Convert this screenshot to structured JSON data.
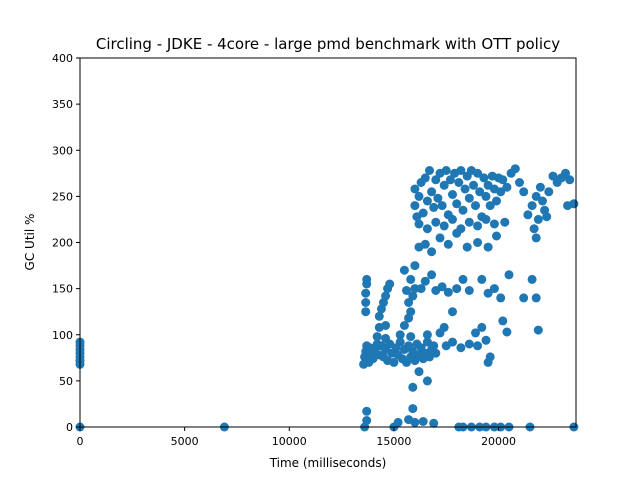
{
  "chart_data": {
    "type": "scatter",
    "title": "Circling - JDKE - 4core -  large pmd benchmark with OTT policy",
    "xlabel": "Time (milliseconds)",
    "ylabel": "GC Util %",
    "xlim": [
      0,
      23700
    ],
    "ylim": [
      0,
      400
    ],
    "xticks": [
      0,
      5000,
      10000,
      15000,
      20000
    ],
    "yticks": [
      0,
      50,
      100,
      150,
      200,
      250,
      300,
      350,
      400
    ],
    "grid": false,
    "legend": "none",
    "marker_color": "#1f77b4",
    "series": [
      {
        "points": [
          [
            0,
            0
          ],
          [
            0,
            68
          ],
          [
            0,
            72
          ],
          [
            0,
            76
          ],
          [
            0,
            80
          ],
          [
            0,
            84
          ],
          [
            0,
            88
          ],
          [
            0,
            92
          ],
          [
            6900,
            0
          ],
          [
            13600,
            0
          ],
          [
            13700,
            7
          ],
          [
            13700,
            17
          ],
          [
            15000,
            0
          ],
          [
            15200,
            5
          ],
          [
            15900,
            20
          ],
          [
            15700,
            8
          ],
          [
            16000,
            5
          ],
          [
            16400,
            6
          ],
          [
            16900,
            4
          ],
          [
            18100,
            0
          ],
          [
            18300,
            0
          ],
          [
            18700,
            0
          ],
          [
            19100,
            0
          ],
          [
            19400,
            0
          ],
          [
            19800,
            0
          ],
          [
            20100,
            0
          ],
          [
            20500,
            0
          ],
          [
            21500,
            0
          ],
          [
            23600,
            0
          ],
          [
            13550,
            68
          ],
          [
            13600,
            76
          ],
          [
            13650,
            82
          ],
          [
            13700,
            88
          ],
          [
            13750,
            78
          ],
          [
            13800,
            70
          ],
          [
            13850,
            86
          ],
          [
            13900,
            80
          ],
          [
            14000,
            74
          ],
          [
            14100,
            84
          ],
          [
            14200,
            90
          ],
          [
            14300,
            78
          ],
          [
            14400,
            88
          ],
          [
            14500,
            76
          ],
          [
            14600,
            84
          ],
          [
            14700,
            72
          ],
          [
            14800,
            90
          ],
          [
            14900,
            80
          ],
          [
            15000,
            70
          ],
          [
            15100,
            86
          ],
          [
            15200,
            78
          ],
          [
            15300,
            92
          ],
          [
            15400,
            74
          ],
          [
            15500,
            84
          ],
          [
            15600,
            70
          ],
          [
            15700,
            88
          ],
          [
            15800,
            76
          ],
          [
            15900,
            82
          ],
          [
            16000,
            72
          ],
          [
            16100,
            90
          ],
          [
            16200,
            78
          ],
          [
            16300,
            86
          ],
          [
            16400,
            74
          ],
          [
            16500,
            80
          ],
          [
            16600,
            92
          ],
          [
            16700,
            76
          ],
          [
            16800,
            84
          ],
          [
            16900,
            88
          ],
          [
            17000,
            80
          ],
          [
            14200,
            98
          ],
          [
            14600,
            96
          ],
          [
            15300,
            100
          ],
          [
            15800,
            98
          ],
          [
            16600,
            100
          ],
          [
            17200,
            102
          ],
          [
            17500,
            88
          ],
          [
            17800,
            92
          ],
          [
            18200,
            86
          ],
          [
            18600,
            90
          ],
          [
            19000,
            88
          ],
          [
            19400,
            94
          ],
          [
            19600,
            76
          ],
          [
            19500,
            70
          ],
          [
            15900,
            43
          ],
          [
            16600,
            50
          ],
          [
            16200,
            60
          ],
          [
            13650,
            125
          ],
          [
            13650,
            135
          ],
          [
            13650,
            145
          ],
          [
            13700,
            155
          ],
          [
            13700,
            160
          ],
          [
            14300,
            120
          ],
          [
            14400,
            128
          ],
          [
            14500,
            135
          ],
          [
            14600,
            142
          ],
          [
            14700,
            150
          ],
          [
            14800,
            155
          ],
          [
            14300,
            108
          ],
          [
            14600,
            110
          ],
          [
            15500,
            110
          ],
          [
            15700,
            118
          ],
          [
            15800,
            125
          ],
          [
            15700,
            135
          ],
          [
            15900,
            142
          ],
          [
            16000,
            150
          ],
          [
            15600,
            148
          ],
          [
            15800,
            160
          ],
          [
            15500,
            170
          ],
          [
            16000,
            175
          ],
          [
            16300,
            150
          ],
          [
            16500,
            158
          ],
          [
            16800,
            165
          ],
          [
            17000,
            148
          ],
          [
            17300,
            152
          ],
          [
            17600,
            146
          ],
          [
            18000,
            150
          ],
          [
            18300,
            160
          ],
          [
            18600,
            148
          ],
          [
            19200,
            160
          ],
          [
            19500,
            145
          ],
          [
            19800,
            150
          ],
          [
            20100,
            140
          ],
          [
            20500,
            165
          ],
          [
            21200,
            140
          ],
          [
            21600,
            160
          ],
          [
            21800,
            140
          ],
          [
            16200,
            195
          ],
          [
            16500,
            198
          ],
          [
            16800,
            190
          ],
          [
            17200,
            205
          ],
          [
            17600,
            198
          ],
          [
            18000,
            210
          ],
          [
            18500,
            195
          ],
          [
            19000,
            200
          ],
          [
            19500,
            195
          ],
          [
            19900,
            207
          ],
          [
            21700,
            215
          ],
          [
            21800,
            205
          ],
          [
            17800,
            125
          ],
          [
            17400,
            108
          ],
          [
            18900,
            102
          ],
          [
            19200,
            108
          ],
          [
            20200,
            115
          ],
          [
            20400,
            103
          ],
          [
            21900,
            105
          ],
          [
            16000,
            258
          ],
          [
            16000,
            240
          ],
          [
            16100,
            228
          ],
          [
            16200,
            250
          ],
          [
            16300,
            265
          ],
          [
            16400,
            232
          ],
          [
            16500,
            270
          ],
          [
            16600,
            245
          ],
          [
            16700,
            278
          ],
          [
            16800,
            255
          ],
          [
            16900,
            238
          ],
          [
            17000,
            268
          ],
          [
            17100,
            248
          ],
          [
            17200,
            275
          ],
          [
            17300,
            240
          ],
          [
            17400,
            262
          ],
          [
            17500,
            278
          ],
          [
            17600,
            230
          ],
          [
            17700,
            268
          ],
          [
            17800,
            252
          ],
          [
            17900,
            275
          ],
          [
            18000,
            242
          ],
          [
            18100,
            265
          ],
          [
            18200,
            278
          ],
          [
            18300,
            235
          ],
          [
            18400,
            258
          ],
          [
            18500,
            272
          ],
          [
            18600,
            248
          ],
          [
            18700,
            278
          ],
          [
            18800,
            262
          ],
          [
            18900,
            240
          ],
          [
            19000,
            275
          ],
          [
            19100,
            255
          ],
          [
            19200,
            228
          ],
          [
            19300,
            270
          ],
          [
            19400,
            250
          ],
          [
            19500,
            262
          ],
          [
            19600,
            240
          ],
          [
            19700,
            272
          ],
          [
            19800,
            258
          ],
          [
            19900,
            245
          ],
          [
            20000,
            270
          ],
          [
            20100,
            255
          ],
          [
            20200,
            268
          ],
          [
            20400,
            260
          ],
          [
            20600,
            275
          ],
          [
            20800,
            280
          ],
          [
            21000,
            265
          ],
          [
            21200,
            255
          ],
          [
            16200,
            220
          ],
          [
            16600,
            215
          ],
          [
            17000,
            222
          ],
          [
            17400,
            218
          ],
          [
            17800,
            225
          ],
          [
            18200,
            215
          ],
          [
            18600,
            222
          ],
          [
            19000,
            218
          ],
          [
            19400,
            225
          ],
          [
            19800,
            220
          ],
          [
            20300,
            222
          ],
          [
            21400,
            230
          ],
          [
            21600,
            240
          ],
          [
            21800,
            250
          ],
          [
            22000,
            260
          ],
          [
            22200,
            235
          ],
          [
            22400,
            255
          ],
          [
            22600,
            272
          ],
          [
            22800,
            265
          ],
          [
            23000,
            270
          ],
          [
            23200,
            275
          ],
          [
            23400,
            268
          ],
          [
            23600,
            242
          ],
          [
            23300,
            240
          ],
          [
            22100,
            245
          ],
          [
            21900,
            225
          ],
          [
            22300,
            228
          ]
        ]
      }
    ]
  }
}
